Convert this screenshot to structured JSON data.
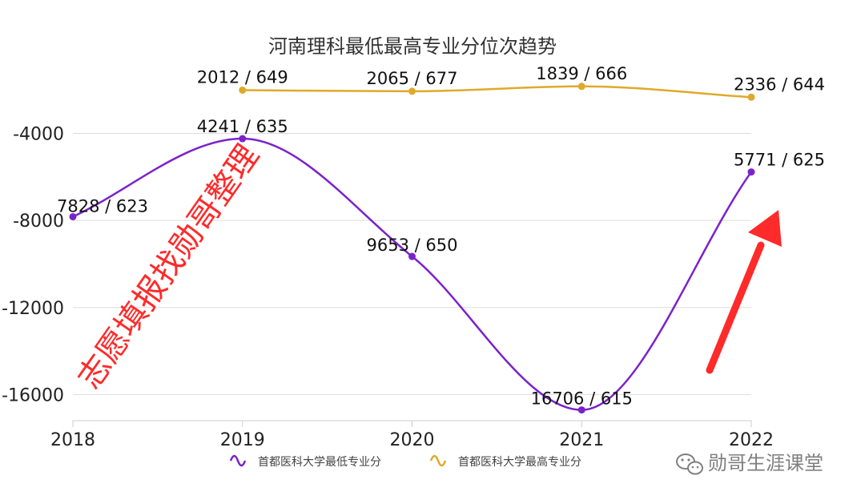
{
  "chart_data": {
    "type": "line",
    "title": "河南理科最低最高专业分位次趋势",
    "categories": [
      "2018",
      "2019",
      "2020",
      "2021",
      "2022"
    ],
    "y_axis": {
      "ticks": [
        -4000,
        -8000,
        -12000,
        -16000
      ],
      "tick_labels": [
        "-4000",
        "-8000",
        "-12000",
        "-16000"
      ],
      "ylim": [
        -17200,
        -1000
      ],
      "grid": true
    },
    "series": [
      {
        "name": "首都医科大学最低专业分",
        "color": "#7b22cc",
        "values": [
          -7828,
          -4241,
          -9653,
          -16706,
          -5771
        ],
        "labels": [
          "7828 / 623",
          "4241 / 635",
          "9653 / 650",
          "16706 / 615",
          "5771 / 625"
        ]
      },
      {
        "name": "首都医科大学最高专业分",
        "color": "#e0a92a",
        "values": [
          null,
          -2012,
          -2065,
          -1839,
          -2336
        ],
        "labels": [
          "",
          "2012 / 649",
          "2065 / 677",
          "1839 / 666",
          "2336 / 644"
        ]
      }
    ],
    "legend_position": "bottom"
  },
  "watermark": {
    "text": "志愿填报找勋哥整理",
    "color": "#ff2a2a"
  },
  "annotation": {
    "arrow_color": "#ff2a2a"
  },
  "branding": {
    "text": "勋哥生涯课堂",
    "icon": "wechat-icon"
  }
}
